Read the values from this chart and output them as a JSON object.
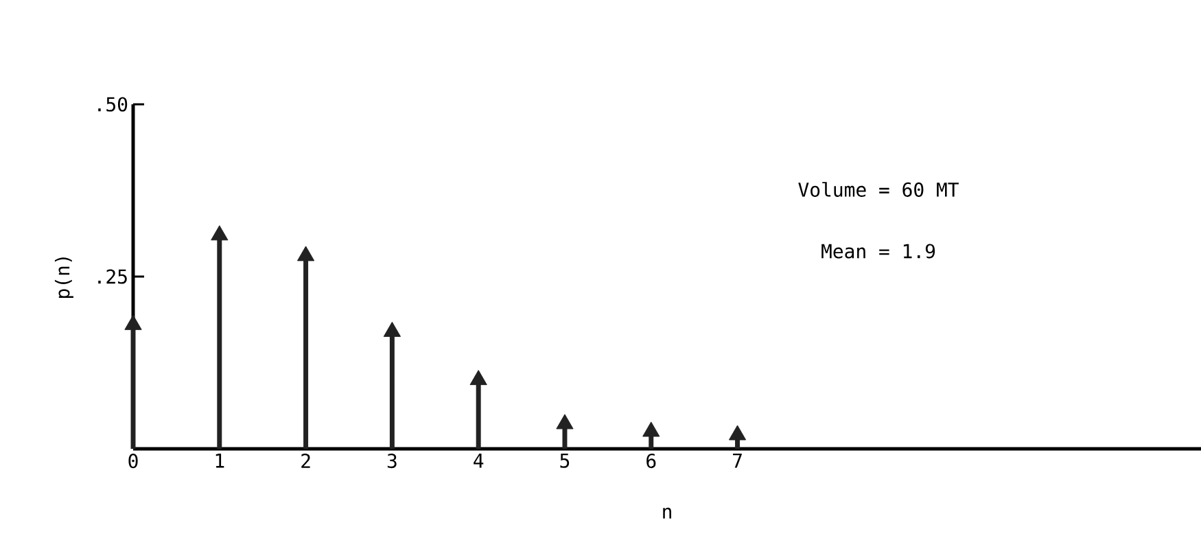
{
  "chart_data": {
    "type": "lollipop",
    "xlabel": "n",
    "ylabel": "p(n)",
    "x": [
      0,
      1,
      2,
      3,
      4,
      5,
      6,
      7
    ],
    "values": [
      0.18,
      0.31,
      0.28,
      0.17,
      0.1,
      0.036,
      0.025,
      0.02
    ],
    "color": "#222222",
    "marker": "triangle",
    "grid": false,
    "xlim": [
      0,
      12.37
    ],
    "xticks": [
      0,
      1,
      2,
      3,
      4,
      5,
      6,
      7
    ],
    "ylim": [
      0,
      0.5
    ],
    "yticks": [
      {
        "value": 0.25,
        "label": ".25"
      },
      {
        "value": 0.5,
        "label": ".50"
      }
    ],
    "tick_labels": true,
    "annotations": [
      "Volume = 60 MT",
      "Mean = 1.9"
    ]
  }
}
